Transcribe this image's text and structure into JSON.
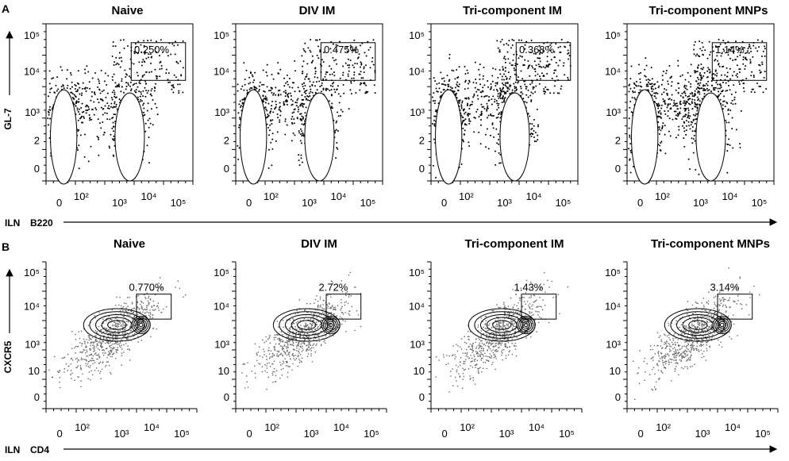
{
  "panels": [
    {
      "label": "A",
      "y_axis_label": "GL-7",
      "x_axis_prefix": "ILN",
      "x_axis_label": "B220",
      "y_tick_labels": [
        "10⁵",
        "10⁴",
        "10³",
        "2",
        "0"
      ],
      "x_tick_labels": [
        "0",
        "10²",
        "10³",
        "10⁴",
        "10⁵"
      ],
      "plots": [
        {
          "title": "Naive",
          "gate": "0.250%"
        },
        {
          "title": "DIV IM",
          "gate": "0.475%"
        },
        {
          "title": "Tri-component IM",
          "gate": "0.368%"
        },
        {
          "title": "Tri-component MNPs",
          "gate": "1.14%"
        }
      ]
    },
    {
      "label": "B",
      "y_axis_label": "CXCR5",
      "x_axis_prefix": "ILN",
      "x_axis_label": "CD4",
      "y_tick_labels": [
        "10⁵",
        "10⁴",
        "10³",
        "10",
        "0"
      ],
      "x_tick_labels": [
        "0",
        "10²",
        "10³",
        "10⁴",
        "10⁵"
      ],
      "plots": [
        {
          "title": "Naive",
          "gate": "0.770%"
        },
        {
          "title": "DIV IM",
          "gate": "2.72%"
        },
        {
          "title": "Tri-component IM",
          "gate": "1.43%"
        },
        {
          "title": "Tri-component MNPs",
          "gate": "3.14%"
        }
      ]
    }
  ]
}
